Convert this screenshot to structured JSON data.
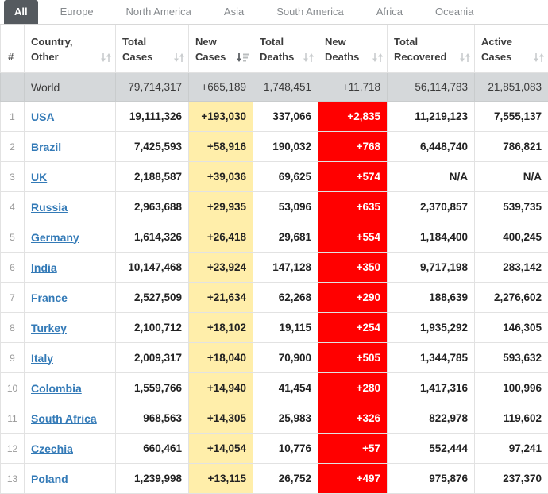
{
  "tabs": [
    {
      "label": "All",
      "active": true
    },
    {
      "label": "Europe",
      "active": false
    },
    {
      "label": "North America",
      "active": false
    },
    {
      "label": "Asia",
      "active": false
    },
    {
      "label": "South America",
      "active": false
    },
    {
      "label": "Africa",
      "active": false
    },
    {
      "label": "Oceania",
      "active": false
    }
  ],
  "colors": {
    "new_cases_highlight": "#ffeeaa",
    "new_deaths_highlight": "#ff0000",
    "country_link": "#337ab7",
    "active_tab_bg": "#555a5f",
    "world_row_bg": "#d5d8da"
  },
  "table": {
    "columns": [
      {
        "key": "rank",
        "lines": [
          "#"
        ],
        "sort": null
      },
      {
        "key": "country",
        "lines": [
          "Country,",
          "Other"
        ],
        "sort": "both"
      },
      {
        "key": "total_cases",
        "lines": [
          "Total",
          "Cases"
        ],
        "sort": "both"
      },
      {
        "key": "new_cases",
        "lines": [
          "New",
          "Cases"
        ],
        "sort": "desc"
      },
      {
        "key": "total_deaths",
        "lines": [
          "Total",
          "Deaths"
        ],
        "sort": "both"
      },
      {
        "key": "new_deaths",
        "lines": [
          "New",
          "Deaths"
        ],
        "sort": "both"
      },
      {
        "key": "total_recovered",
        "lines": [
          "Total",
          "Recovered"
        ],
        "sort": "both"
      },
      {
        "key": "active_cases",
        "lines": [
          "Active",
          "Cases"
        ],
        "sort": "both"
      }
    ],
    "world_row": {
      "rank": "",
      "country": "World",
      "total_cases": "79,714,317",
      "new_cases": "+665,189",
      "total_deaths": "1,748,451",
      "new_deaths": "+11,718",
      "total_recovered": "56,114,783",
      "active_cases": "21,851,083"
    },
    "rows": [
      {
        "rank": "1",
        "country": "USA",
        "total_cases": "19,111,326",
        "new_cases": "+193,030",
        "total_deaths": "337,066",
        "new_deaths": "+2,835",
        "total_recovered": "11,219,123",
        "active_cases": "7,555,137"
      },
      {
        "rank": "2",
        "country": "Brazil",
        "total_cases": "7,425,593",
        "new_cases": "+58,916",
        "total_deaths": "190,032",
        "new_deaths": "+768",
        "total_recovered": "6,448,740",
        "active_cases": "786,821"
      },
      {
        "rank": "3",
        "country": "UK",
        "total_cases": "2,188,587",
        "new_cases": "+39,036",
        "total_deaths": "69,625",
        "new_deaths": "+574",
        "total_recovered": "N/A",
        "active_cases": "N/A"
      },
      {
        "rank": "4",
        "country": "Russia",
        "total_cases": "2,963,688",
        "new_cases": "+29,935",
        "total_deaths": "53,096",
        "new_deaths": "+635",
        "total_recovered": "2,370,857",
        "active_cases": "539,735"
      },
      {
        "rank": "5",
        "country": "Germany",
        "total_cases": "1,614,326",
        "new_cases": "+26,418",
        "total_deaths": "29,681",
        "new_deaths": "+554",
        "total_recovered": "1,184,400",
        "active_cases": "400,245"
      },
      {
        "rank": "6",
        "country": "India",
        "total_cases": "10,147,468",
        "new_cases": "+23,924",
        "total_deaths": "147,128",
        "new_deaths": "+350",
        "total_recovered": "9,717,198",
        "active_cases": "283,142"
      },
      {
        "rank": "7",
        "country": "France",
        "total_cases": "2,527,509",
        "new_cases": "+21,634",
        "total_deaths": "62,268",
        "new_deaths": "+290",
        "total_recovered": "188,639",
        "active_cases": "2,276,602"
      },
      {
        "rank": "8",
        "country": "Turkey",
        "total_cases": "2,100,712",
        "new_cases": "+18,102",
        "total_deaths": "19,115",
        "new_deaths": "+254",
        "total_recovered": "1,935,292",
        "active_cases": "146,305"
      },
      {
        "rank": "9",
        "country": "Italy",
        "total_cases": "2,009,317",
        "new_cases": "+18,040",
        "total_deaths": "70,900",
        "new_deaths": "+505",
        "total_recovered": "1,344,785",
        "active_cases": "593,632"
      },
      {
        "rank": "10",
        "country": "Colombia",
        "total_cases": "1,559,766",
        "new_cases": "+14,940",
        "total_deaths": "41,454",
        "new_deaths": "+280",
        "total_recovered": "1,417,316",
        "active_cases": "100,996"
      },
      {
        "rank": "11",
        "country": "South Africa",
        "total_cases": "968,563",
        "new_cases": "+14,305",
        "total_deaths": "25,983",
        "new_deaths": "+326",
        "total_recovered": "822,978",
        "active_cases": "119,602"
      },
      {
        "rank": "12",
        "country": "Czechia",
        "total_cases": "660,461",
        "new_cases": "+14,054",
        "total_deaths": "10,776",
        "new_deaths": "+57",
        "total_recovered": "552,444",
        "active_cases": "97,241"
      },
      {
        "rank": "13",
        "country": "Poland",
        "total_cases": "1,239,998",
        "new_cases": "+13,115",
        "total_deaths": "26,752",
        "new_deaths": "+497",
        "total_recovered": "975,876",
        "active_cases": "237,370"
      }
    ]
  }
}
